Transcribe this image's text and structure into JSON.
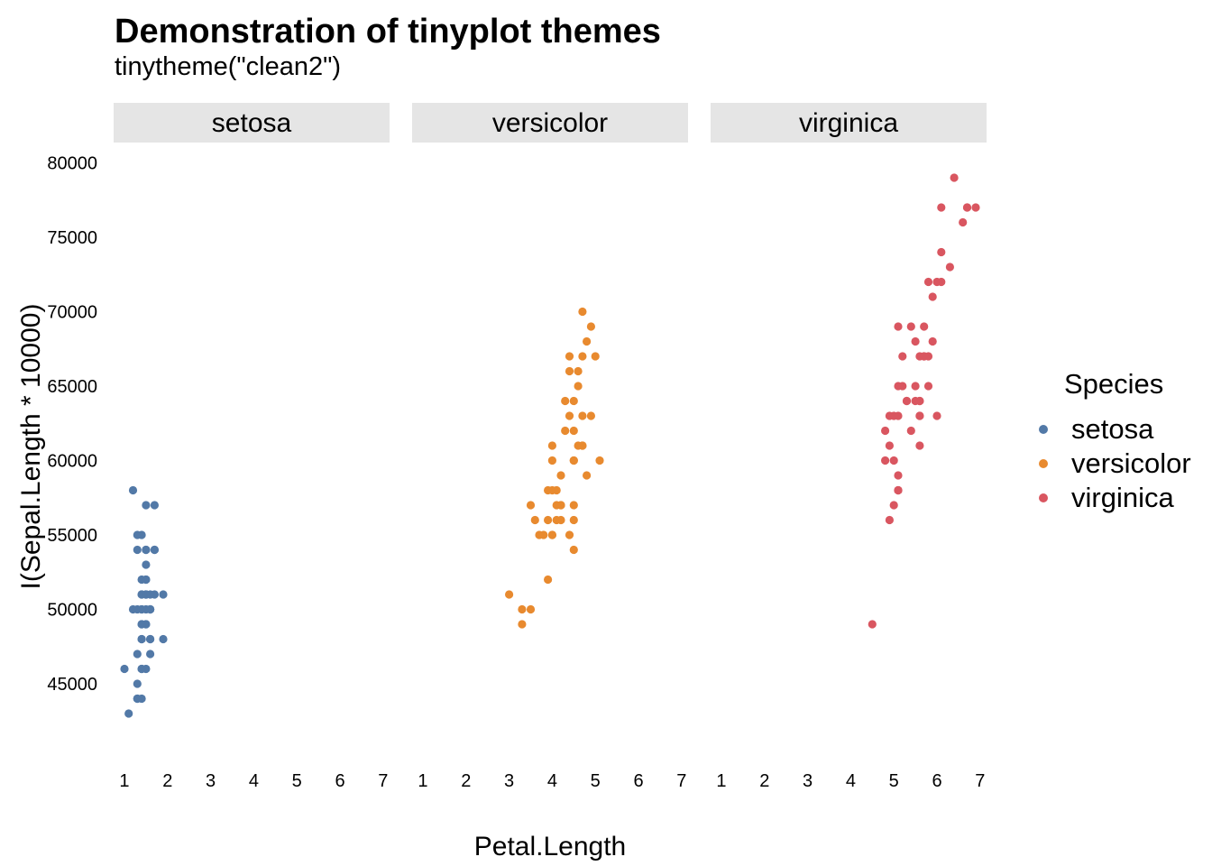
{
  "chart_data": {
    "type": "scatter",
    "title": "Demonstration of tinyplot themes",
    "subtitle": "tinytheme(\"clean2\")",
    "xlabel": "Petal.Length",
    "ylabel": "I(Sepal.Length * 10000)",
    "xlim": [
      0.75,
      7.15
    ],
    "ylim": [
      41000,
      81000
    ],
    "x_ticks": [
      1,
      2,
      3,
      4,
      5,
      6,
      7
    ],
    "y_ticks": [
      45000,
      50000,
      55000,
      60000,
      65000,
      70000,
      75000,
      80000
    ],
    "y_tick_labels": [
      "45000",
      "50000",
      "55000",
      "60000",
      "65000",
      "70000",
      "75000",
      "80000"
    ],
    "grid": false,
    "facets": [
      "setosa",
      "versicolor",
      "virginica"
    ],
    "legend": {
      "title": "Species",
      "position": "right"
    },
    "series": [
      {
        "name": "setosa",
        "color": "#5279a7",
        "points": [
          [
            1.4,
            51000
          ],
          [
            1.4,
            49000
          ],
          [
            1.3,
            47000
          ],
          [
            1.5,
            46000
          ],
          [
            1.4,
            50000
          ],
          [
            1.7,
            54000
          ],
          [
            1.4,
            46000
          ],
          [
            1.5,
            50000
          ],
          [
            1.4,
            44000
          ],
          [
            1.5,
            49000
          ],
          [
            1.5,
            54000
          ],
          [
            1.6,
            48000
          ],
          [
            1.4,
            48000
          ],
          [
            1.1,
            43000
          ],
          [
            1.2,
            58000
          ],
          [
            1.5,
            57000
          ],
          [
            1.3,
            54000
          ],
          [
            1.4,
            51000
          ],
          [
            1.7,
            57000
          ],
          [
            1.5,
            51000
          ],
          [
            1.7,
            54000
          ],
          [
            1.5,
            51000
          ],
          [
            1.0,
            46000
          ],
          [
            1.7,
            51000
          ],
          [
            1.9,
            48000
          ],
          [
            1.6,
            50000
          ],
          [
            1.6,
            50000
          ],
          [
            1.5,
            52000
          ],
          [
            1.4,
            52000
          ],
          [
            1.6,
            47000
          ],
          [
            1.6,
            48000
          ],
          [
            1.5,
            54000
          ],
          [
            1.5,
            52000
          ],
          [
            1.4,
            55000
          ],
          [
            1.5,
            49000
          ],
          [
            1.2,
            50000
          ],
          [
            1.3,
            55000
          ],
          [
            1.4,
            49000
          ],
          [
            1.3,
            44000
          ],
          [
            1.5,
            51000
          ],
          [
            1.3,
            50000
          ],
          [
            1.3,
            45000
          ],
          [
            1.3,
            44000
          ],
          [
            1.6,
            50000
          ],
          [
            1.9,
            51000
          ],
          [
            1.4,
            48000
          ],
          [
            1.6,
            51000
          ],
          [
            1.4,
            46000
          ],
          [
            1.5,
            53000
          ],
          [
            1.4,
            50000
          ]
        ]
      },
      {
        "name": "versicolor",
        "color": "#e88a2f",
        "points": [
          [
            4.7,
            70000
          ],
          [
            4.5,
            64000
          ],
          [
            4.9,
            69000
          ],
          [
            4.0,
            55000
          ],
          [
            4.6,
            65000
          ],
          [
            4.5,
            57000
          ],
          [
            4.7,
            63000
          ],
          [
            3.3,
            49000
          ],
          [
            4.6,
            66000
          ],
          [
            3.9,
            52000
          ],
          [
            3.5,
            50000
          ],
          [
            4.2,
            59000
          ],
          [
            4.0,
            60000
          ],
          [
            4.7,
            61000
          ],
          [
            3.6,
            56000
          ],
          [
            4.4,
            67000
          ],
          [
            4.5,
            56000
          ],
          [
            4.1,
            58000
          ],
          [
            4.5,
            62000
          ],
          [
            3.9,
            56000
          ],
          [
            4.8,
            59000
          ],
          [
            4.0,
            61000
          ],
          [
            4.9,
            63000
          ],
          [
            4.7,
            61000
          ],
          [
            4.3,
            64000
          ],
          [
            4.4,
            66000
          ],
          [
            4.8,
            68000
          ],
          [
            5.0,
            67000
          ],
          [
            4.5,
            60000
          ],
          [
            3.5,
            57000
          ],
          [
            3.8,
            55000
          ],
          [
            3.7,
            55000
          ],
          [
            3.9,
            58000
          ],
          [
            5.1,
            60000
          ],
          [
            4.5,
            54000
          ],
          [
            4.5,
            60000
          ],
          [
            4.7,
            67000
          ],
          [
            4.4,
            63000
          ],
          [
            4.1,
            56000
          ],
          [
            4.0,
            55000
          ],
          [
            4.4,
            55000
          ],
          [
            4.6,
            61000
          ],
          [
            4.0,
            58000
          ],
          [
            3.3,
            50000
          ],
          [
            4.2,
            56000
          ],
          [
            4.2,
            57000
          ],
          [
            4.2,
            57000
          ],
          [
            4.3,
            62000
          ],
          [
            3.0,
            51000
          ],
          [
            4.1,
            57000
          ]
        ]
      },
      {
        "name": "virginica",
        "color": "#d95660",
        "points": [
          [
            6.0,
            63000
          ],
          [
            5.1,
            58000
          ],
          [
            5.9,
            71000
          ],
          [
            5.6,
            63000
          ],
          [
            5.8,
            65000
          ],
          [
            6.6,
            76000
          ],
          [
            4.5,
            49000
          ],
          [
            6.3,
            73000
          ],
          [
            5.8,
            67000
          ],
          [
            6.1,
            72000
          ],
          [
            5.1,
            65000
          ],
          [
            5.3,
            64000
          ],
          [
            5.5,
            68000
          ],
          [
            5.0,
            57000
          ],
          [
            5.1,
            58000
          ],
          [
            5.3,
            64000
          ],
          [
            5.5,
            65000
          ],
          [
            6.7,
            77000
          ],
          [
            6.9,
            77000
          ],
          [
            5.0,
            60000
          ],
          [
            5.7,
            69000
          ],
          [
            4.9,
            56000
          ],
          [
            6.7,
            77000
          ],
          [
            4.9,
            63000
          ],
          [
            5.7,
            67000
          ],
          [
            6.0,
            72000
          ],
          [
            4.8,
            62000
          ],
          [
            4.9,
            61000
          ],
          [
            5.6,
            64000
          ],
          [
            5.8,
            72000
          ],
          [
            6.1,
            74000
          ],
          [
            6.4,
            79000
          ],
          [
            5.6,
            64000
          ],
          [
            5.1,
            63000
          ],
          [
            5.6,
            61000
          ],
          [
            6.1,
            77000
          ],
          [
            5.6,
            63000
          ],
          [
            5.5,
            64000
          ],
          [
            4.8,
            60000
          ],
          [
            5.4,
            69000
          ],
          [
            5.6,
            67000
          ],
          [
            5.1,
            69000
          ],
          [
            5.1,
            58000
          ],
          [
            5.9,
            68000
          ],
          [
            5.7,
            67000
          ],
          [
            5.2,
            67000
          ],
          [
            5.0,
            63000
          ],
          [
            5.2,
            65000
          ],
          [
            5.4,
            62000
          ],
          [
            5.1,
            59000
          ]
        ]
      }
    ]
  }
}
